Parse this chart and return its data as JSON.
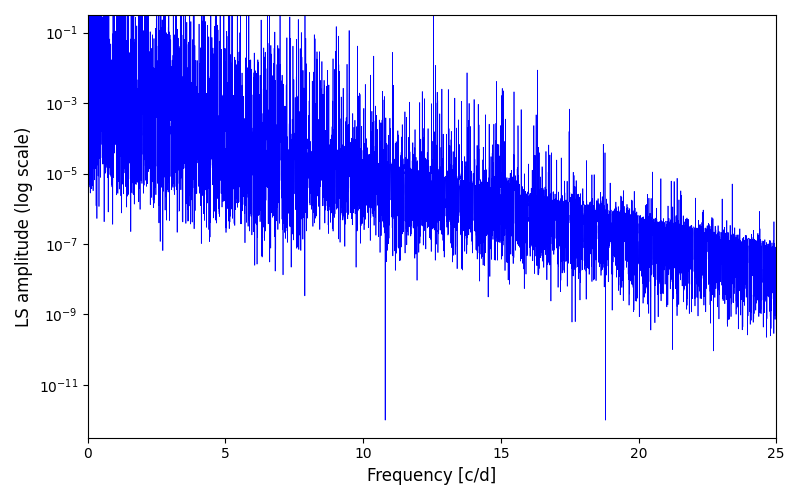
{
  "title": "",
  "xlabel": "Frequency [c/d]",
  "ylabel": "LS amplitude (log scale)",
  "xlim": [
    0,
    25
  ],
  "ylim_log": [
    -12.5,
    -0.5
  ],
  "line_color": "#0000FF",
  "line_width": 0.5,
  "figsize": [
    8.0,
    5.0
  ],
  "dpi": 100,
  "seed": 123,
  "n_points": 15000,
  "freq_max": 25.0,
  "dip_freqs": [
    10.8,
    18.8
  ],
  "dip_value": 1e-12
}
